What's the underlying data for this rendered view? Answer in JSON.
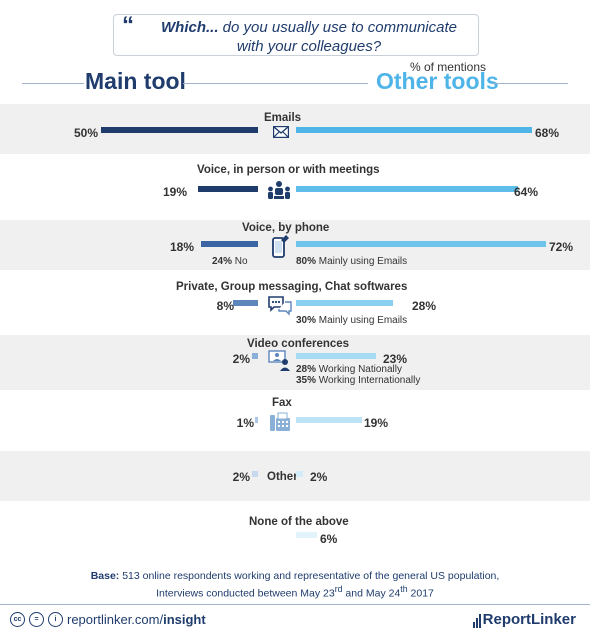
{
  "question": {
    "quote_icon": "quote-icon",
    "lead": "Which...",
    "rest": " do you usually use to communicate with your colleagues?"
  },
  "mentions_label": "% of mentions",
  "main_tool_label": "Main tool",
  "other_tools_label": "Other tools",
  "colors": {
    "main": [
      "#1f3c6d",
      "#1f3c6d",
      "#3a64a2",
      "#5d86bd",
      "#8ab0d8",
      "#adc7e6",
      "#c7d9ee",
      "#dce8f4"
    ],
    "other": [
      "#4fb5e8",
      "#5fbdea",
      "#6fc4ec",
      "#8acff0",
      "#a6dbf3",
      "#bde4f6",
      "#d2edf9",
      "#e2f3fb"
    ]
  },
  "chart_data": {
    "type": "bar",
    "categories": [
      "Emails",
      "Voice, in person or with meetings",
      "Voice, by phone",
      "Private, Group messaging, Chat softwares",
      "Video conferences",
      "Fax",
      "Other",
      "None of the above"
    ],
    "series": [
      {
        "name": "Main tool",
        "values": [
          50,
          19,
          18,
          8,
          2,
          1,
          2,
          null
        ]
      },
      {
        "name": "Other tools",
        "values": [
          68,
          64,
          72,
          28,
          23,
          19,
          2,
          6
        ]
      }
    ],
    "value_labels": {
      "main": [
        "50%",
        "19%",
        "18%",
        "8%",
        "2%",
        "1%",
        "2%",
        ""
      ],
      "other": [
        "68%",
        "64%",
        "72%",
        "28%",
        "23%",
        "19%",
        "2%",
        "6%"
      ]
    },
    "icons": [
      "envelope-icon",
      "meeting-icon",
      "phone-icon",
      "chat-icon",
      "video-conference-icon",
      "fax-icon",
      "",
      ""
    ],
    "annotations": {
      "phone_main": {
        "value": "24%",
        "text": " No"
      },
      "phone_other": {
        "value": "80%",
        "text": " Mainly using Emails"
      },
      "chat_other": {
        "value": "30%",
        "text": " Mainly using Emails"
      },
      "video_other_1": {
        "value": "28%",
        "text": " Working Nationally"
      },
      "video_other_2": {
        "value": "35%",
        "text": " Working Internationally"
      }
    }
  },
  "base_note": {
    "label": "Base:",
    "line1": " 513 online respondents working and representative of the general US population,",
    "line2a": "Interviews conducted between May 23",
    "sup1": "rd",
    "line2b": " and May 24",
    "sup2": "th",
    "line2c": " 2017"
  },
  "footer": {
    "cc_icon": "cc",
    "equals_icon": "=",
    "person_icon": "i",
    "site": "reportlinker.com/",
    "site_bold": "insight",
    "brand": "ReportLinker"
  }
}
